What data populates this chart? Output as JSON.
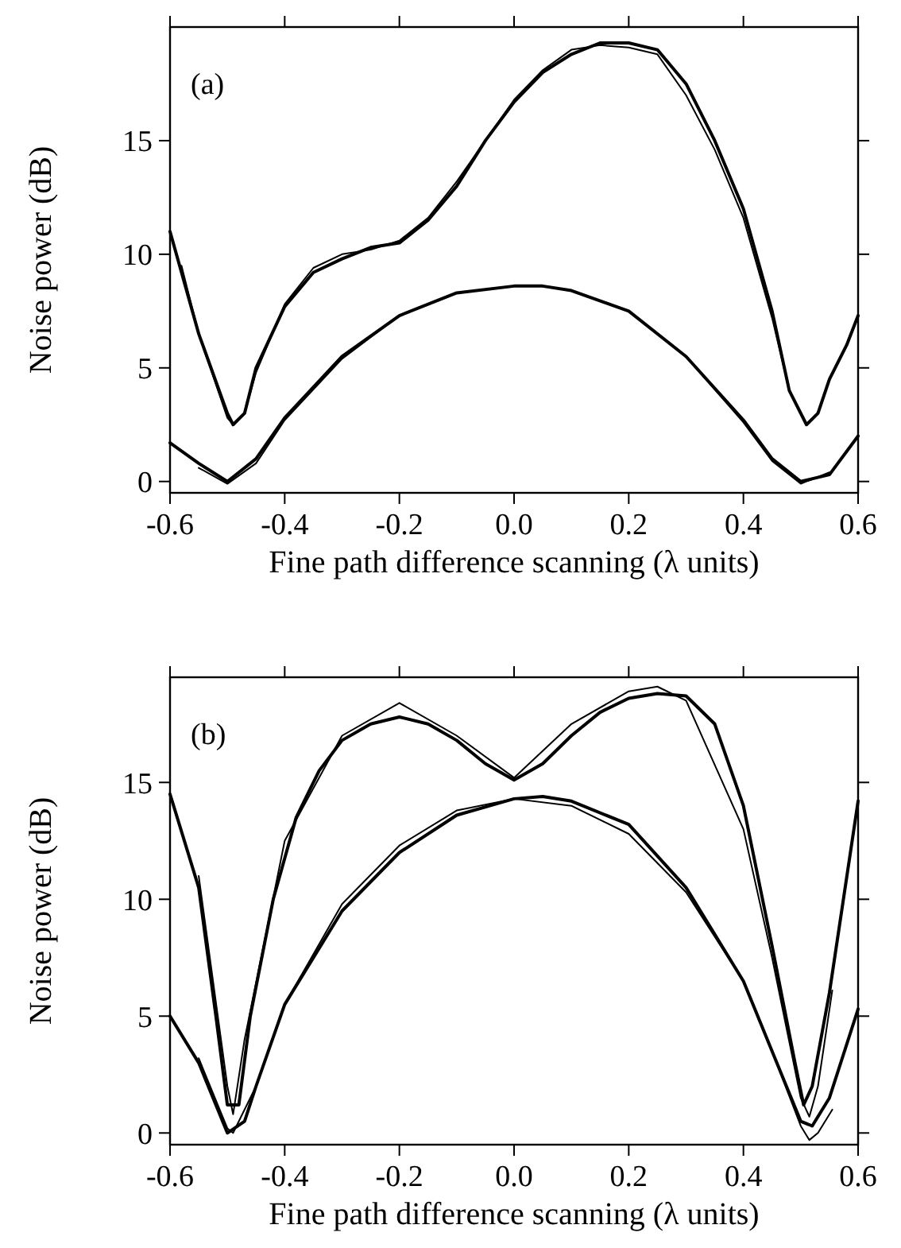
{
  "chart_data": [
    {
      "type": "line",
      "xlabel": "Fine path difference scanning (λ units)",
      "ylabel": "Noise power (dB)",
      "annotations": [
        "(a)"
      ],
      "xlim": [
        -0.6,
        0.6
      ],
      "ylim": [
        -0.5,
        20
      ],
      "xticks": [
        {
          "value": -0.6,
          "label": "-0.6"
        },
        {
          "value": -0.4,
          "label": "-0.4"
        },
        {
          "value": -0.2,
          "label": "-0.2"
        },
        {
          "value": 0,
          "label": "0.0"
        },
        {
          "value": 0.2,
          "label": "0.2"
        },
        {
          "value": 0.4,
          "label": "0.4"
        },
        {
          "value": 0.6,
          "label": "0.6"
        }
      ],
      "yticks": [
        0,
        5,
        10,
        15
      ],
      "grid": false,
      "marker": "none",
      "line_style": "solid",
      "series": [
        {
          "color": "#000000",
          "x": [
            -0.6,
            -0.55,
            -0.5,
            -0.49,
            -0.47,
            -0.45,
            -0.4,
            -0.35,
            -0.3,
            -0.25,
            -0.2,
            -0.15,
            -0.1,
            -0.05,
            0,
            0.05,
            0.1,
            0.15,
            0.2,
            0.25,
            0.3,
            0.35,
            0.4,
            0.45,
            0.48,
            0.51,
            0.53,
            0.55,
            0.58,
            0.6
          ],
          "values": [
            11,
            6.5,
            3,
            2.5,
            3,
            5,
            7.7,
            9.2,
            9.8,
            10.3,
            10.5,
            11.5,
            13,
            15,
            16.7,
            18,
            18.8,
            19.3,
            19.3,
            19,
            17.5,
            15,
            12,
            7.5,
            4,
            2.5,
            3,
            4.5,
            6,
            7.3
          ]
        },
        {
          "color": "#000000",
          "x": [
            -0.58,
            -0.55,
            -0.5,
            -0.49,
            -0.47,
            -0.45,
            -0.4,
            -0.35,
            -0.3,
            -0.25,
            -0.2,
            -0.15,
            -0.1,
            -0.05,
            0,
            0.05,
            0.1,
            0.15,
            0.2,
            0.25,
            0.3,
            0.35,
            0.4,
            0.45,
            0.48,
            0.51,
            0.53,
            0.55
          ],
          "values": [
            9.5,
            6.5,
            2.8,
            2.5,
            3,
            4.8,
            7.8,
            9.4,
            10,
            10.2,
            10.6,
            11.6,
            13.2,
            15,
            16.8,
            18.1,
            19,
            19.2,
            19.1,
            18.8,
            17,
            14.6,
            11.6,
            7.2,
            4,
            2.5,
            3,
            4.5
          ]
        },
        {
          "color": "#000000",
          "x": [
            -0.6,
            -0.55,
            -0.5,
            -0.45,
            -0.4,
            -0.3,
            -0.2,
            -0.1,
            0,
            0.05,
            0.1,
            0.2,
            0.3,
            0.4,
            0.45,
            0.5,
            0.55,
            0.6
          ],
          "values": [
            1.7,
            0.8,
            0,
            1,
            2.8,
            5.5,
            7.3,
            8.3,
            8.6,
            8.6,
            8.4,
            7.5,
            5.5,
            2.7,
            1,
            0,
            0.3,
            2
          ]
        },
        {
          "color": "#000000",
          "x": [
            -0.55,
            -0.5,
            -0.45,
            -0.4,
            -0.3,
            -0.2,
            -0.1,
            0,
            0.05,
            0.1,
            0.2,
            0.3,
            0.4,
            0.45,
            0.5,
            0.55
          ],
          "values": [
            0.6,
            -0.1,
            0.8,
            2.7,
            5.4,
            7.3,
            8.3,
            8.6,
            8.6,
            8.4,
            7.5,
            5.5,
            2.6,
            0.9,
            -0.1,
            0.4
          ]
        }
      ]
    },
    {
      "type": "line",
      "xlabel": "Fine path difference scanning (λ units)",
      "ylabel": "Noise power (dB)",
      "annotations": [
        "(b)"
      ],
      "xlim": [
        -0.6,
        0.6
      ],
      "ylim": [
        -0.5,
        19.5
      ],
      "xticks": [
        {
          "value": -0.6,
          "label": "-0.6"
        },
        {
          "value": -0.4,
          "label": "-0.4"
        },
        {
          "value": -0.2,
          "label": "-0.2"
        },
        {
          "value": 0,
          "label": "0.0"
        },
        {
          "value": 0.2,
          "label": "0.2"
        },
        {
          "value": 0.4,
          "label": "0.4"
        },
        {
          "value": 0.6,
          "label": "0.6"
        }
      ],
      "yticks": [
        0,
        5,
        10,
        15
      ],
      "grid": false,
      "marker": "none",
      "line_style": "solid",
      "series": [
        {
          "color": "#000000",
          "x": [
            -0.6,
            -0.55,
            -0.52,
            -0.5,
            -0.48,
            -0.46,
            -0.42,
            -0.38,
            -0.34,
            -0.3,
            -0.25,
            -0.2,
            -0.15,
            -0.1,
            -0.05,
            0,
            0.05,
            0.1,
            0.15,
            0.2,
            0.25,
            0.3,
            0.35,
            0.4,
            0.45,
            0.49,
            0.505,
            0.52,
            0.55,
            0.6
          ],
          "values": [
            14.5,
            10.5,
            5,
            1.2,
            1.2,
            5,
            10,
            13.5,
            15.5,
            16.8,
            17.5,
            17.8,
            17.5,
            16.8,
            15.8,
            15.1,
            15.8,
            17,
            18,
            18.6,
            18.8,
            18.7,
            17.5,
            14,
            8,
            3,
            1.2,
            2,
            6,
            14.2
          ]
        },
        {
          "color": "#000000",
          "x": [
            -0.55,
            -0.5,
            -0.49,
            -0.47,
            -0.4,
            -0.3,
            -0.2,
            -0.1,
            0,
            0.1,
            0.2,
            0.25,
            0.3,
            0.4,
            0.45,
            0.5,
            0.515,
            0.53,
            0.555
          ],
          "values": [
            11,
            2,
            0.8,
            4,
            12.5,
            17,
            18.4,
            17,
            15.2,
            17.5,
            18.9,
            19.1,
            18.5,
            13,
            7.5,
            1.5,
            0.7,
            2,
            6.1
          ]
        },
        {
          "color": "#000000",
          "x": [
            -0.6,
            -0.55,
            -0.5,
            -0.47,
            -0.45,
            -0.4,
            -0.3,
            -0.2,
            -0.1,
            0,
            0.05,
            0.1,
            0.2,
            0.3,
            0.4,
            0.45,
            0.5,
            0.52,
            0.55,
            0.6
          ],
          "values": [
            5,
            3,
            0,
            0.5,
            2,
            5.5,
            9.5,
            12,
            13.6,
            14.3,
            14.4,
            14.2,
            13.2,
            10.5,
            6.5,
            3.5,
            0.5,
            0.3,
            1.5,
            5.3
          ]
        },
        {
          "color": "#000000",
          "x": [
            -0.55,
            -0.5,
            -0.49,
            -0.45,
            -0.4,
            -0.3,
            -0.2,
            -0.1,
            0,
            0.1,
            0.2,
            0.3,
            0.4,
            0.45,
            0.5,
            0.515,
            0.53,
            0.555
          ],
          "values": [
            3.2,
            0.2,
            0,
            2,
            5.5,
            9.8,
            12.3,
            13.8,
            14.3,
            14,
            12.8,
            10.3,
            6.5,
            3.5,
            0.3,
            -0.3,
            0,
            1
          ]
        }
      ]
    }
  ]
}
